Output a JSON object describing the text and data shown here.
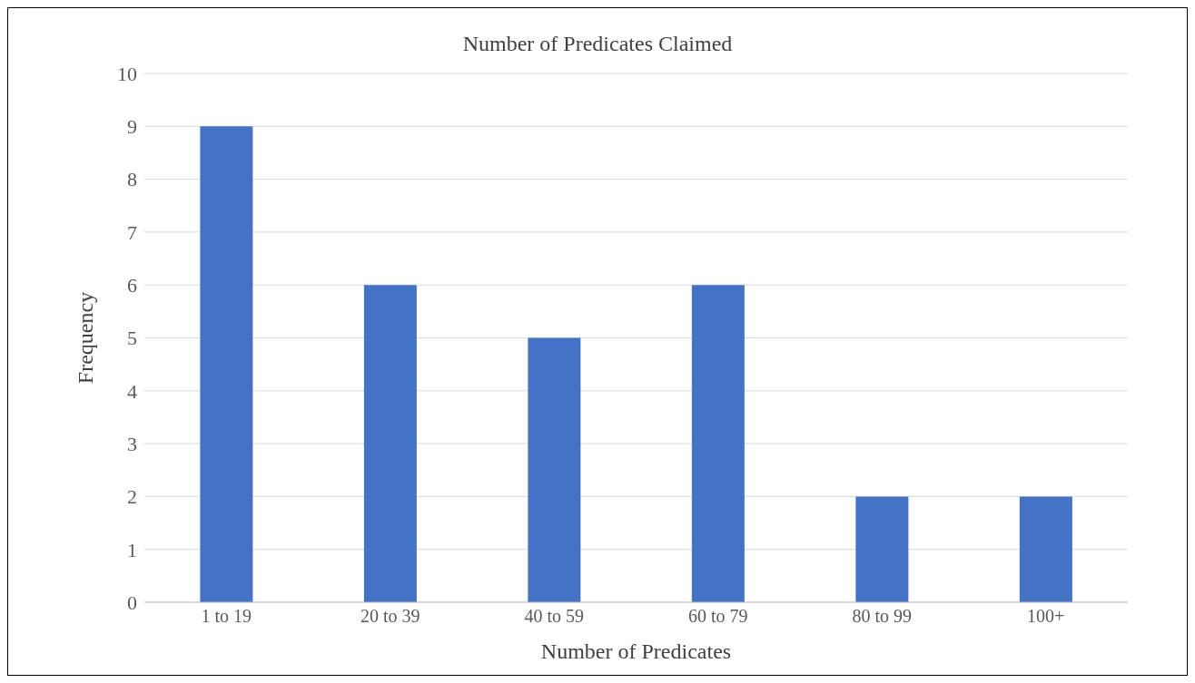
{
  "chart_data": {
    "type": "bar",
    "title": "Number of Predicates Claimed",
    "xlabel": "Number of Predicates",
    "ylabel": "Frequency",
    "categories": [
      "1 to 19",
      "20 to 39",
      "40 to 59",
      "60 to 79",
      "80 to 99",
      "100+"
    ],
    "values": [
      9,
      6,
      5,
      6,
      2,
      2
    ],
    "color": "#4472c4",
    "ylim": [
      0,
      10
    ],
    "yticks": [
      0,
      1,
      2,
      3,
      4,
      5,
      6,
      7,
      8,
      9,
      10
    ],
    "grid": "y"
  }
}
